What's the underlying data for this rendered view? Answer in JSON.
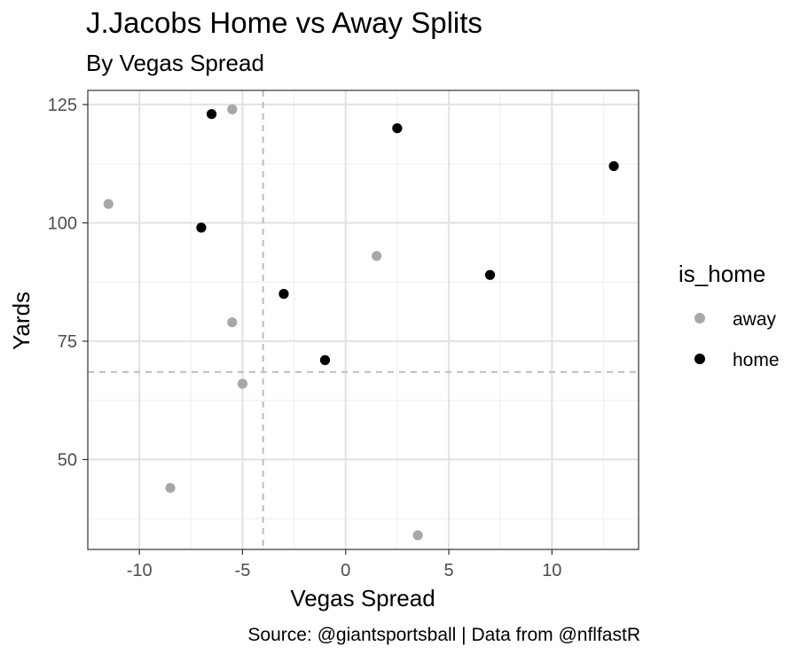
{
  "chart_data": {
    "type": "scatter",
    "title": "J.Jacobs Home vs Away Splits",
    "subtitle": "By Vegas Spread",
    "xlabel": "Vegas Spread",
    "ylabel": "Yards",
    "caption": "Source: @giantsportsball | Data from @nflfastR",
    "xlim": [
      -12.5,
      14.2
    ],
    "ylim": [
      31,
      128
    ],
    "x_ticks": [
      -10,
      -5,
      0,
      5,
      10
    ],
    "y_ticks": [
      50,
      75,
      100,
      125
    ],
    "x_tick_labels": [
      "-10",
      "-5",
      "0",
      "5",
      "10"
    ],
    "y_tick_labels": [
      "50",
      "75",
      "100",
      "125"
    ],
    "grid": true,
    "reference_lines": {
      "vertical_x": -4,
      "horizontal_y": 68.5
    },
    "legend": {
      "title": "is_home",
      "position": "right"
    },
    "series": [
      {
        "name": "away",
        "color": "#a3a8ab",
        "points": [
          {
            "x": -11.5,
            "y": 104
          },
          {
            "x": -8.5,
            "y": 44
          },
          {
            "x": -5.5,
            "y": 124
          },
          {
            "x": -5.5,
            "y": 79
          },
          {
            "x": -5,
            "y": 66
          },
          {
            "x": 1.5,
            "y": 93
          },
          {
            "x": 3.5,
            "y": 34
          }
        ]
      },
      {
        "name": "home",
        "color": "#000000",
        "points": [
          {
            "x": -7,
            "y": 99
          },
          {
            "x": -6.5,
            "y": 123
          },
          {
            "x": -3,
            "y": 85
          },
          {
            "x": -1,
            "y": 71
          },
          {
            "x": 2.5,
            "y": 120
          },
          {
            "x": 7,
            "y": 89
          },
          {
            "x": 13,
            "y": 112
          }
        ]
      }
    ]
  }
}
